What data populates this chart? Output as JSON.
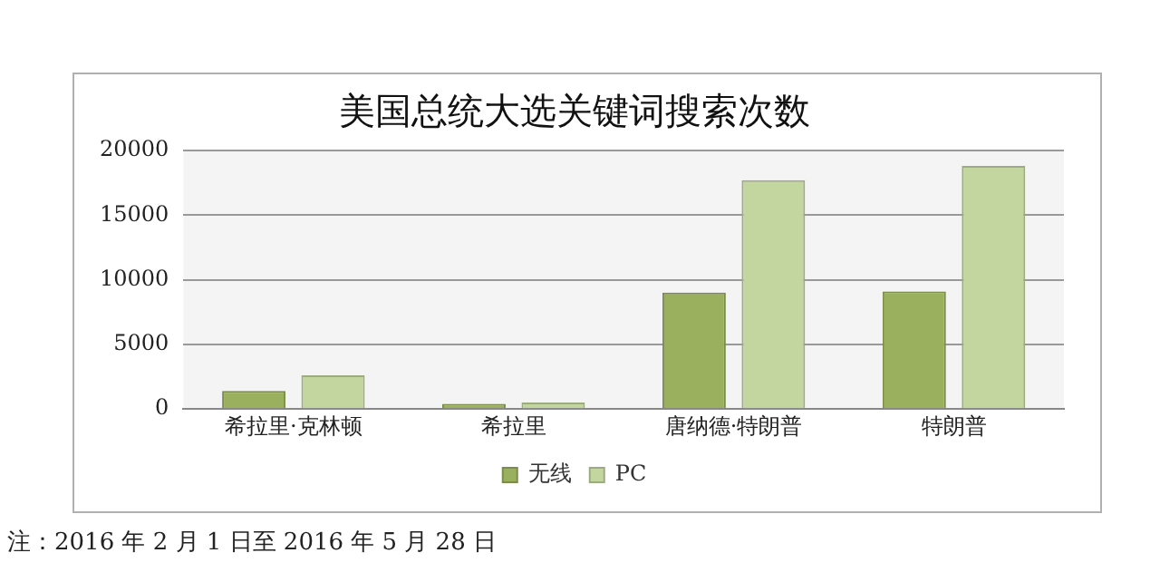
{
  "chart_data": {
    "type": "bar",
    "title": "美国总统大选关键词搜索次数",
    "categories": [
      "希拉里·克林顿",
      "希拉里",
      "唐纳德·特朗普",
      "特朗普"
    ],
    "series": [
      {
        "name": "无线",
        "color": "#9bb05e",
        "values": [
          1400,
          400,
          9000,
          9100
        ]
      },
      {
        "name": "PC",
        "color": "#c4d6a0",
        "values": [
          2600,
          500,
          17700,
          18800
        ]
      }
    ],
    "ylim": [
      0,
      20000
    ],
    "yticks": [
      0,
      5000,
      10000,
      15000,
      20000
    ],
    "grid": "y",
    "legend": "bottom",
    "annotations": [
      "注：2016 年 2 月 1 日至 2016 年 5 月 28 日"
    ]
  }
}
